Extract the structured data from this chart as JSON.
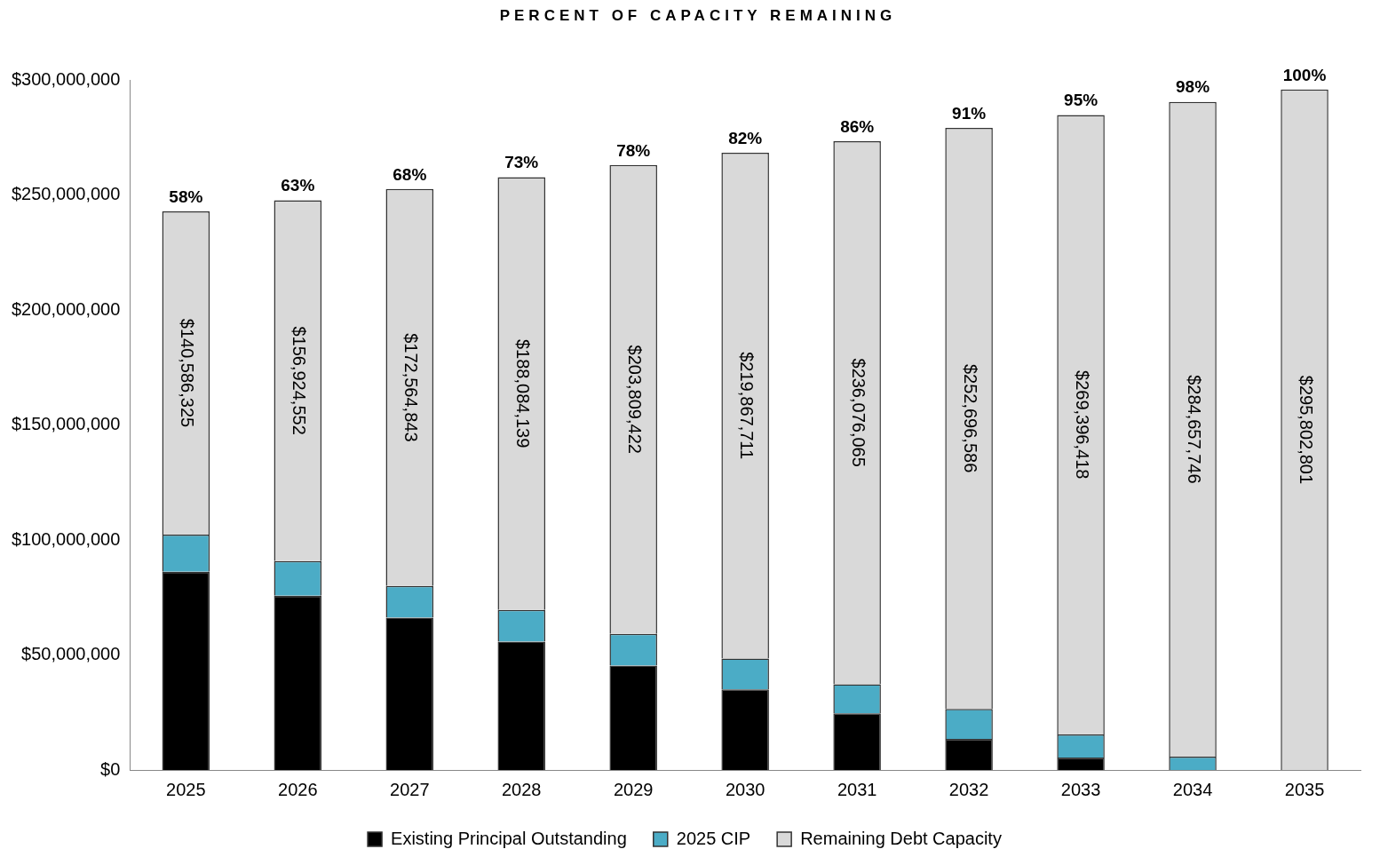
{
  "chart_data": {
    "type": "bar",
    "stacked": true,
    "title": "PERCENT OF CAPACITY REMAINING",
    "categories": [
      "2025",
      "2026",
      "2027",
      "2028",
      "2029",
      "2030",
      "2031",
      "2032",
      "2033",
      "2034",
      "2035"
    ],
    "series": [
      {
        "name": "Existing Principal Outstanding",
        "color": "#000000",
        "values": [
          86200000,
          75800000,
          66200000,
          55800000,
          45400000,
          35000000,
          24600000,
          13500000,
          5400000,
          0,
          0
        ]
      },
      {
        "name": "2025 CIP",
        "color": "#4bacc6",
        "values": [
          16100000,
          15000000,
          13800000,
          13800000,
          13800000,
          13500000,
          12700000,
          13000000,
          10000000,
          5800000,
          0
        ]
      },
      {
        "name": "Remaining Debt Capacity",
        "color": "#d9d9d9",
        "values": [
          140586325,
          156924552,
          172564843,
          188084139,
          203809422,
          219867711,
          236076065,
          252696586,
          269396418,
          284657746,
          295802801
        ],
        "value_labels": [
          "$140,586,325",
          "$156,924,552",
          "$172,564,843",
          "$188,084,139",
          "$203,809,422",
          "$219,867,711",
          "$236,076,065",
          "$252,696,586",
          "$269,396,418",
          "$284,657,746",
          "$295,802,801"
        ]
      }
    ],
    "ylim": [
      0,
      300000000
    ],
    "yticks": [
      {
        "value": 0,
        "label": "$0"
      },
      {
        "value": 50000000,
        "label": "$50,000,000"
      },
      {
        "value": 100000000,
        "label": "$100,000,000"
      },
      {
        "value": 150000000,
        "label": "$150,000,000"
      },
      {
        "value": 200000000,
        "label": "$200,000,000"
      },
      {
        "value": 250000000,
        "label": "$250,000,000"
      },
      {
        "value": 300000000,
        "label": "$300,000,000"
      }
    ],
    "grid": false,
    "legend": "bottom",
    "annotations": [
      {
        "text": "58%",
        "x": "2025",
        "y": 242886325
      },
      {
        "text": "63%",
        "x": "2026",
        "y": 247724552
      },
      {
        "text": "68%",
        "x": "2027",
        "y": 252564843
      },
      {
        "text": "73%",
        "x": "2028",
        "y": 257684139
      },
      {
        "text": "78%",
        "x": "2029",
        "y": 263009422
      },
      {
        "text": "82%",
        "x": "2030",
        "y": 268367711
      },
      {
        "text": "86%",
        "x": "2031",
        "y": 273376065
      },
      {
        "text": "91%",
        "x": "2032",
        "y": 279196586
      },
      {
        "text": "95%",
        "x": "2033",
        "y": 284796418
      },
      {
        "text": "98%",
        "x": "2034",
        "y": 290457746
      },
      {
        "text": "100%",
        "x": "2035",
        "y": 295802801
      }
    ]
  }
}
